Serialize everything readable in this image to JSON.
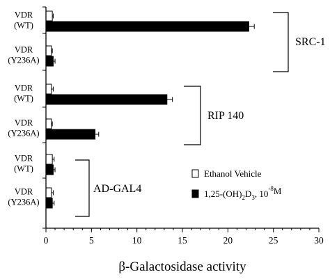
{
  "chart_data": {
    "type": "bar",
    "orientation": "horizontal",
    "xlabel": "β-Galactosidase activity",
    "xlim": [
      0,
      30
    ],
    "xticks": [
      "0",
      "5",
      "10",
      "15",
      "20",
      "25",
      "30"
    ],
    "grid": false,
    "legend_position": "bottom-right",
    "categories": [
      [
        "VDR",
        "(WT)"
      ],
      [
        "VDR",
        "(Y236A)"
      ],
      [
        "VDR",
        "(WT)"
      ],
      [
        "VDR",
        "(Y236A)"
      ],
      [
        "VDR",
        "(WT)"
      ],
      [
        "VDR",
        "(Y236A)"
      ]
    ],
    "groups": [
      {
        "label": "SRC-1",
        "categories": [
          0,
          1
        ]
      },
      {
        "label": "RIP 140",
        "categories": [
          2,
          3
        ]
      },
      {
        "label": "AD-GAL4",
        "categories": [
          4,
          5
        ]
      }
    ],
    "series": [
      {
        "name": "Ethanol Vehicle",
        "color": "#ffffff",
        "values": [
          0.7,
          0.6,
          0.6,
          0.6,
          0.7,
          0.6
        ],
        "errors": [
          0.1,
          0.1,
          0.2,
          0.1,
          0.2,
          0.2
        ]
      },
      {
        "name": "1,25-(OH)2D3, 10-8M",
        "legend_parts": {
          "prefix": "1,25-(OH)",
          "sub": "2",
          "mid": "D",
          "sub2": "3",
          "mid2": ", 10",
          "sup": "-8",
          "suffix": "M"
        },
        "color": "#000000",
        "values": [
          22.3,
          0.8,
          13.3,
          5.4,
          0.8,
          0.7
        ],
        "errors": [
          0.6,
          0.2,
          0.6,
          0.4,
          0.2,
          0.2
        ]
      }
    ]
  }
}
